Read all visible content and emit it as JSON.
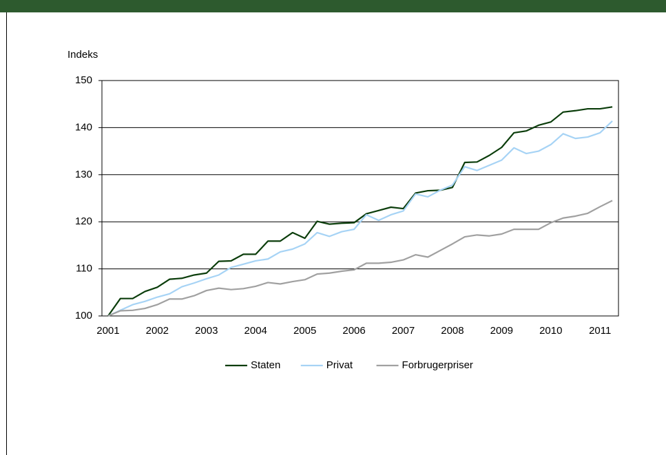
{
  "chart_data": {
    "type": "line",
    "y_axis_label": "Indeks",
    "categories": [
      "2001",
      null,
      null,
      null,
      "2002",
      null,
      null,
      null,
      "2003",
      null,
      null,
      null,
      "2004",
      null,
      null,
      null,
      "2005",
      null,
      null,
      null,
      "2006",
      null,
      null,
      null,
      "2007",
      null,
      null,
      null,
      "2008",
      null,
      null,
      null,
      "2009",
      null,
      null,
      null,
      "2010",
      null,
      null,
      null,
      "2011",
      null
    ],
    "series": [
      {
        "name": "Staten",
        "color": "#0b3d0b",
        "values": [
          100,
          103.7,
          103.7,
          105.2,
          106.1,
          107.8,
          108.0,
          108.7,
          109.1,
          111.6,
          111.7,
          113.1,
          113.1,
          115.9,
          115.9,
          117.7,
          116.5,
          120.1,
          119.5,
          119.7,
          119.8,
          121.7,
          122.4,
          123.1,
          122.8,
          126.1,
          126.6,
          126.7,
          127.3,
          132.6,
          132.7,
          134.1,
          135.8,
          138.9,
          139.3,
          140.5,
          141.2,
          143.3,
          143.6,
          144.0,
          144.0,
          144.4
        ]
      },
      {
        "name": "Privat",
        "color": "#a6d3f5",
        "values": [
          100,
          101.2,
          102.4,
          103.1,
          104.0,
          104.7,
          106.2,
          107.0,
          107.9,
          108.7,
          110.3,
          111.0,
          111.7,
          112.1,
          113.6,
          114.2,
          115.3,
          117.7,
          116.9,
          117.9,
          118.4,
          121.5,
          120.3,
          121.5,
          122.3,
          125.9,
          125.3,
          126.7,
          127.8,
          131.7,
          130.9,
          132.0,
          133.1,
          135.7,
          134.5,
          135.0,
          136.4,
          138.7,
          137.7,
          138.0,
          138.9,
          141.4
        ]
      },
      {
        "name": "Forbrugerpriser",
        "color": "#a0a0a0",
        "values": [
          100,
          101.1,
          101.2,
          101.6,
          102.4,
          103.6,
          103.6,
          104.3,
          105.4,
          105.9,
          105.6,
          105.8,
          106.3,
          107.1,
          106.8,
          107.3,
          107.7,
          108.9,
          109.1,
          109.5,
          109.8,
          111.2,
          111.2,
          111.4,
          111.9,
          113.0,
          112.5,
          113.9,
          115.3,
          116.8,
          117.2,
          117.0,
          117.4,
          118.4,
          118.4,
          118.4,
          119.8,
          120.8,
          121.2,
          121.8,
          123.2,
          124.5
        ]
      }
    ],
    "ylim": [
      100,
      150
    ],
    "yticks": [
      100,
      110,
      120,
      130,
      140,
      150
    ],
    "grid": true,
    "legend": "bottom"
  }
}
